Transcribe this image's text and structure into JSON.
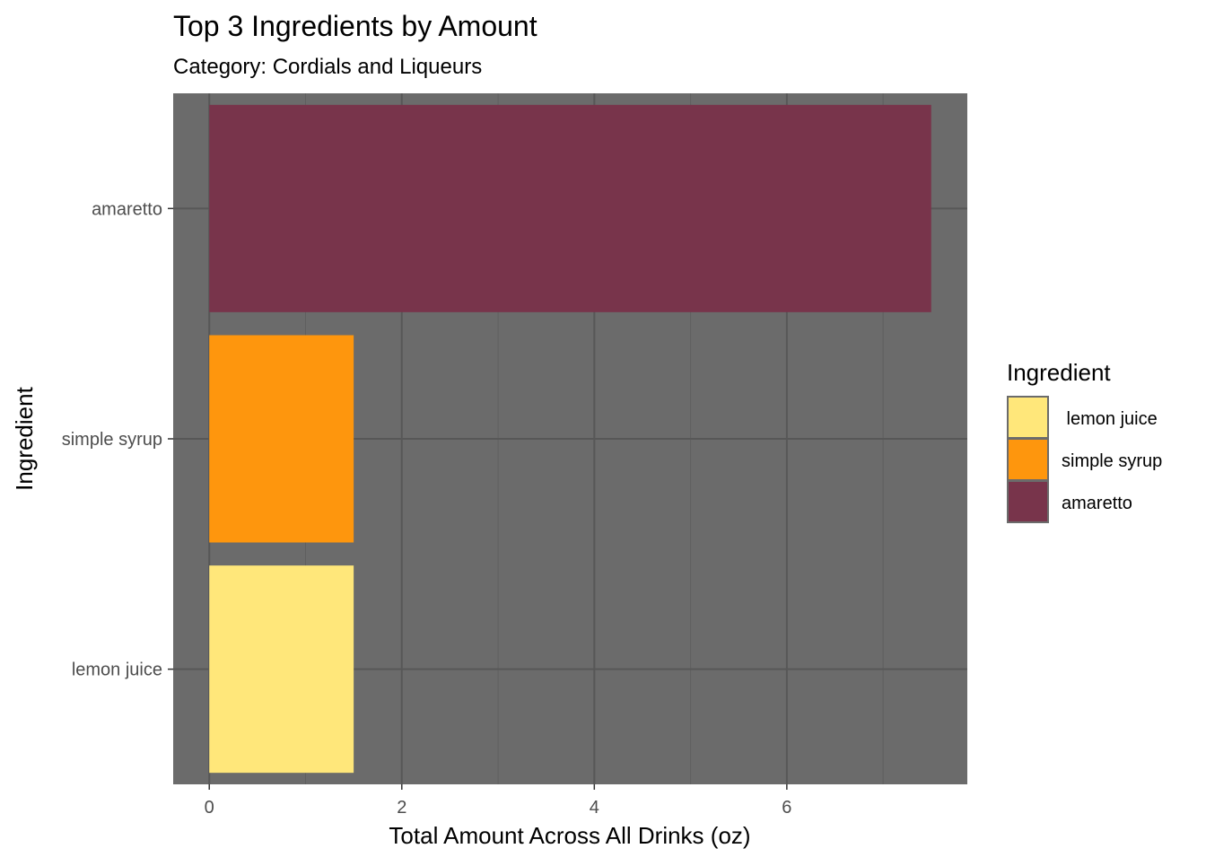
{
  "chart_data": {
    "type": "bar",
    "orientation": "horizontal",
    "title": "Top 3 Ingredients by Amount",
    "subtitle": "Category: Cordials and Liqueurs",
    "xlabel": "Total Amount Across All Drinks (oz)",
    "ylabel": "Ingredient",
    "categories": [
      "amaretto",
      "simple syrup",
      "lemon juice"
    ],
    "values": [
      7.5,
      1.5,
      1.5
    ],
    "colors": [
      "#78344b",
      "#fe960d",
      "#ffe77a"
    ],
    "xlim": [
      -0.375,
      7.875
    ],
    "xticks": [
      0,
      2,
      4,
      6
    ],
    "xtick_labels": [
      "0",
      "2",
      "4",
      "6"
    ],
    "grid": true,
    "panel_background": "#6b6b6b",
    "legend": {
      "title": "Ingredient",
      "position": "right",
      "entries": [
        {
          "label": " lemon juice",
          "color": "#ffe77a"
        },
        {
          "label": "simple syrup",
          "color": "#fe960d"
        },
        {
          "label": "amaretto",
          "color": "#78344b"
        }
      ]
    }
  }
}
